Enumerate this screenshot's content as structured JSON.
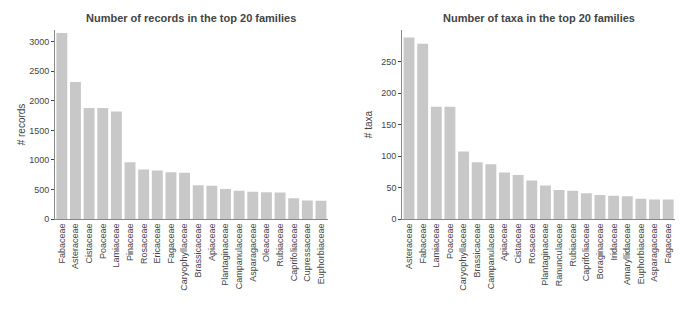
{
  "chart_data": [
    {
      "type": "bar",
      "title": "Number of records in the top 20 families",
      "ylabel": "# records",
      "categories": [
        "Fabaceae",
        "Asteraceae",
        "Cistaceae",
        "Poaceae",
        "Lamiaceae",
        "Pinaceae",
        "Rosaceae",
        "Ericaceae",
        "Fagaceae",
        "Caryophyllaceae",
        "Brassicaceae",
        "Apiaceae",
        "Plantaginaceae",
        "Campanulaceae",
        "Asparagaceae",
        "Oleaceae",
        "Rubiaceae",
        "Caprifoliaceae",
        "Cupressaceae",
        "Euphorbiaceae"
      ],
      "values": [
        3150,
        2320,
        1880,
        1880,
        1820,
        960,
        840,
        820,
        790,
        785,
        570,
        565,
        510,
        480,
        460,
        455,
        450,
        350,
        315,
        310
      ],
      "color": "#c8c8c8",
      "ylim": [
        0,
        3200
      ],
      "yticks": [
        0,
        500,
        1000,
        1500,
        2000,
        2500,
        3000
      ],
      "grid": false
    },
    {
      "type": "bar",
      "title": "Number of taxa in the top 20 families",
      "ylabel": "# taxa",
      "categories": [
        "Asteraceae",
        "Fabaceae",
        "Lamiaceae",
        "Poaceae",
        "Caryophyllaceae",
        "Brassicaceae",
        "Campanulaceae",
        "Apiaceae",
        "Cistaceae",
        "Rosaceae",
        "Plantaginaceae",
        "Ranunculaceae",
        "Rubiaceae",
        "Caprifoliaceae",
        "Boraginaceae",
        "Iridaceae",
        "Amaryllidaceae",
        "Euphorbiaceae",
        "Asparagaceae",
        "Fagaceae"
      ],
      "values": [
        288,
        278,
        178,
        178,
        107,
        90,
        87,
        74,
        70,
        61,
        53,
        46,
        45,
        41,
        38,
        37,
        36,
        32,
        31,
        31
      ],
      "color": "#c8c8c8",
      "ylim": [
        0,
        300
      ],
      "yticks": [
        0,
        50,
        100,
        150,
        200,
        250
      ],
      "grid": false
    }
  ]
}
